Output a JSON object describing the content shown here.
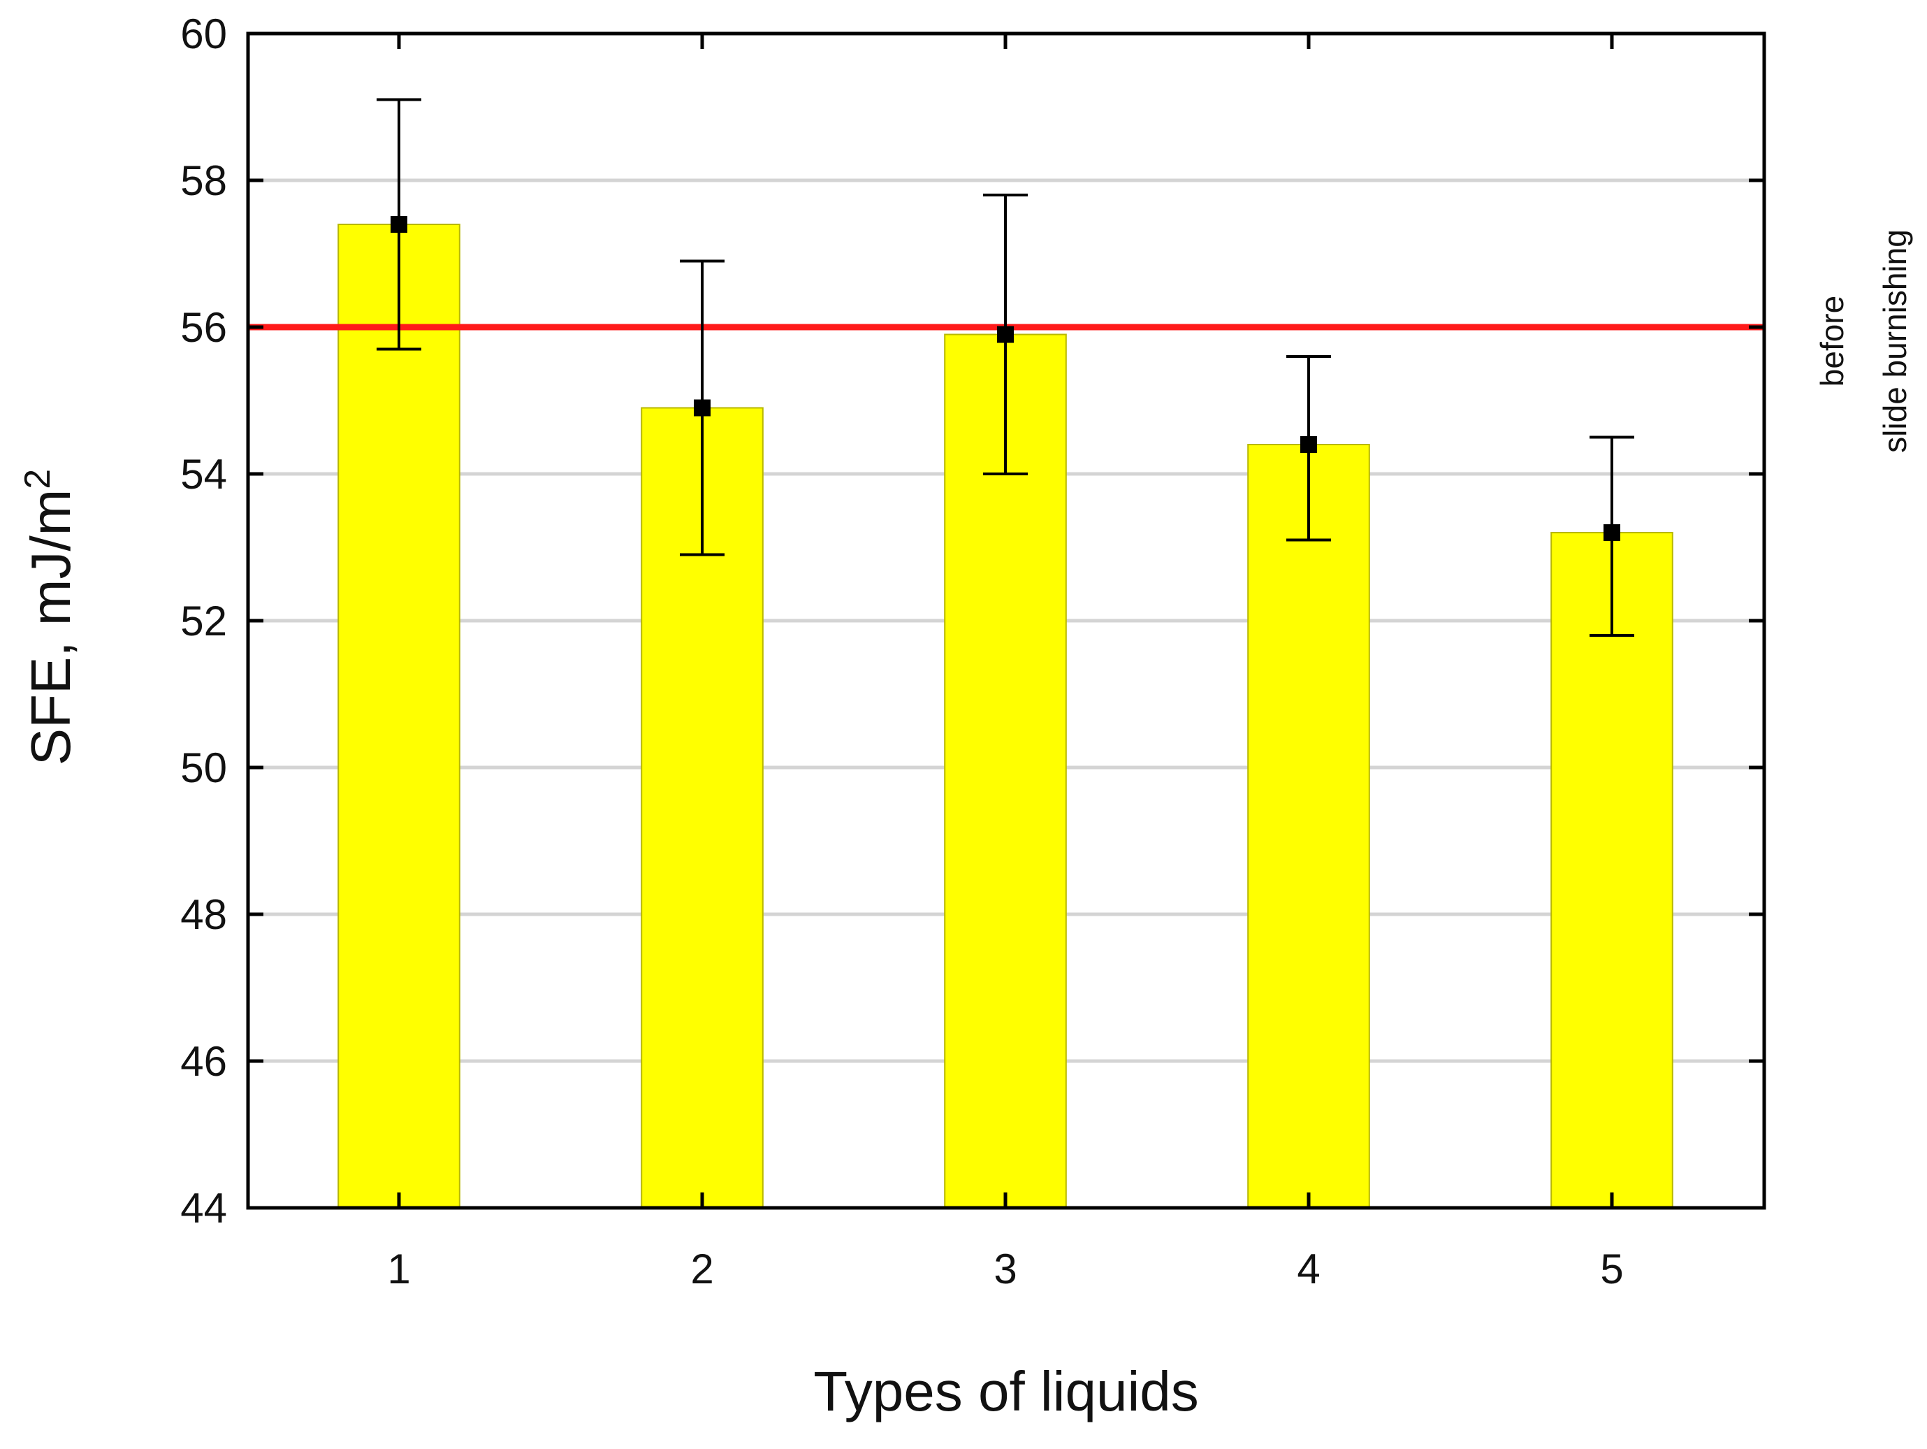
{
  "chart_data": {
    "type": "bar",
    "title": "",
    "xlabel": "Types of liquids",
    "ylabel": "SFE, mJ/m",
    "ylabel_superscript": "2",
    "ylim": [
      44,
      60
    ],
    "yticks": [
      "44",
      "46",
      "48",
      "50",
      "52",
      "54",
      "56",
      "58",
      "60"
    ],
    "categories": [
      "1",
      "2",
      "3",
      "4",
      "5"
    ],
    "values": [
      57.4,
      54.9,
      55.9,
      54.4,
      53.2
    ],
    "error_low": [
      55.7,
      52.9,
      54.0,
      53.1,
      51.8
    ],
    "error_high": [
      59.1,
      56.9,
      57.8,
      55.6,
      54.5
    ],
    "grid": true,
    "reference_line": {
      "value": 56,
      "label_line1": "before",
      "label_line2": "slide burnishing"
    },
    "colors": {
      "bar_fill": "#ffff00",
      "bar_stroke": "#b8b800",
      "reference_line": "#ff1a1a",
      "grid": "#d4d4d4",
      "axis": "#000000",
      "marker": "#000000"
    }
  }
}
